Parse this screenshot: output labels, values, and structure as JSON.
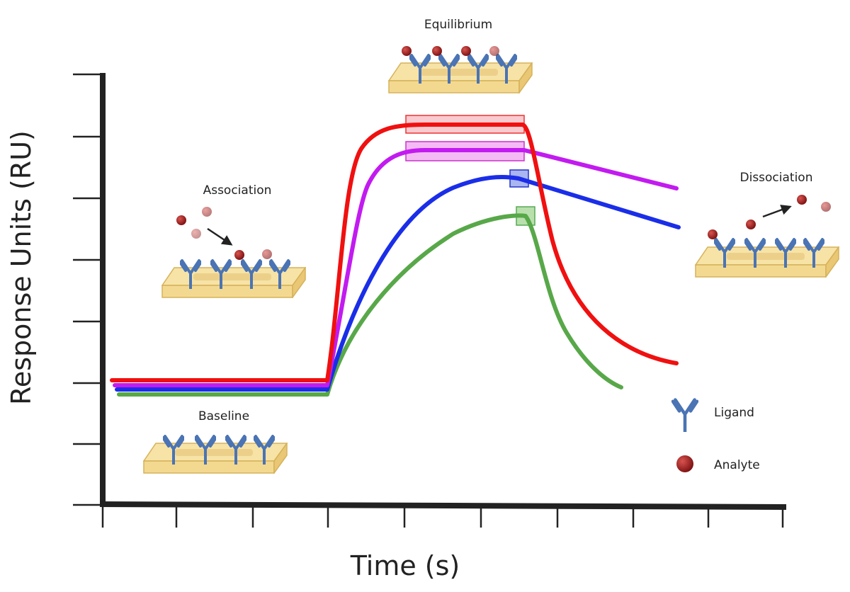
{
  "labels": {
    "equilibrium": "Equilibrium",
    "association": "Association",
    "dissociation": "Dissociation",
    "baseline": "Baseline"
  },
  "legend": {
    "ligand": "Ligand",
    "analyte": "Analyte"
  },
  "axes": {
    "y_label": "Response Units (RU)",
    "x_label": "Time (s)"
  }
}
